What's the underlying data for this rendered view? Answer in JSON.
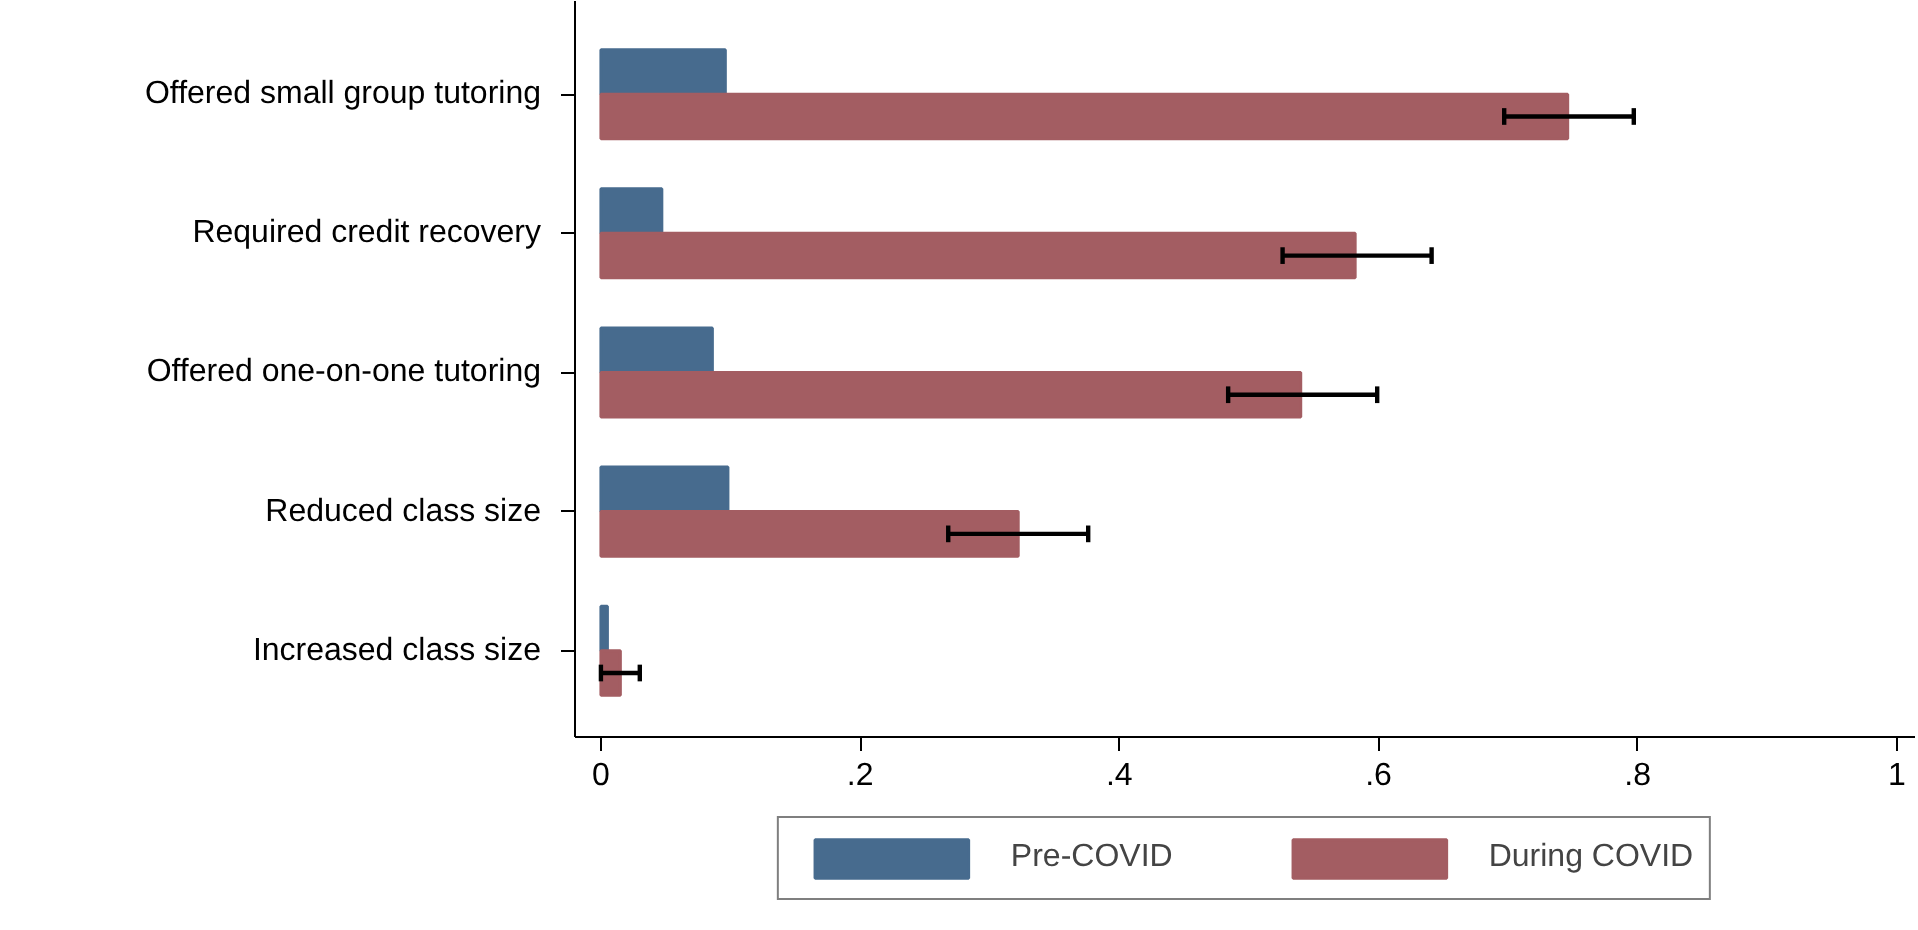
{
  "chart_data": {
    "type": "bar",
    "orientation": "horizontal",
    "categories": [
      "Offered small group tutoring",
      "Required credit recovery",
      "Offered one-on-one tutoring",
      "Reduced class size",
      "Increased class size"
    ],
    "series": [
      {
        "name": "Pre-COVID",
        "color": "#476b8e",
        "values": [
          0.096,
          0.047,
          0.086,
          0.098,
          0.005
        ]
      },
      {
        "name": "During COVID",
        "color": "#a35d62",
        "values": [
          0.746,
          0.582,
          0.54,
          0.322,
          0.015
        ],
        "errors": [
          [
            0.697,
            0.797
          ],
          [
            0.526,
            0.641
          ],
          [
            0.484,
            0.599
          ],
          [
            0.268,
            0.376
          ],
          [
            0.0,
            0.03
          ]
        ]
      }
    ],
    "xlim": [
      -0.02,
      1.014
    ],
    "xticks": [
      0,
      {
        "value": 0.2,
        "label": ".2"
      },
      {
        "value": 0.4,
        "label": ".4"
      },
      {
        "value": 0.6,
        "label": ".6"
      },
      {
        "value": 0.8,
        "label": ".8"
      },
      1
    ],
    "grid": false,
    "legend": "bottom"
  }
}
